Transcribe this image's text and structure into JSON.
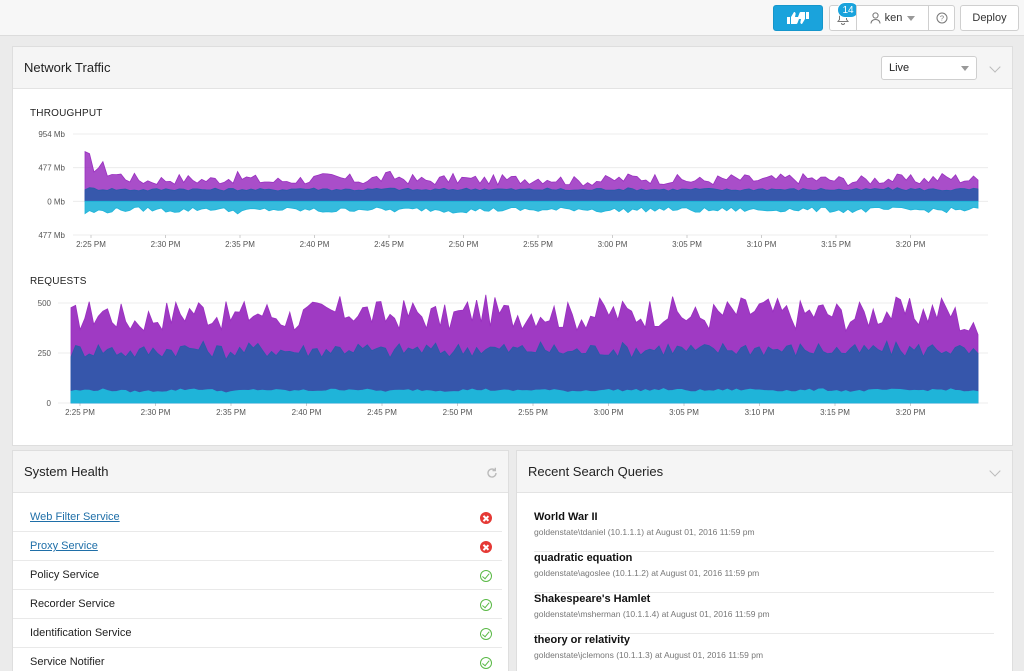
{
  "topbar": {
    "feedback_icon": "thumbs-up-down-icon",
    "notifications_count": "14",
    "user_name": "ken",
    "deploy_label": "Deploy"
  },
  "network": {
    "title": "Network Traffic",
    "range_value": "Live"
  },
  "health": {
    "title": "System Health",
    "services": [
      {
        "name": "Web Filter Service",
        "status": "error",
        "link": true
      },
      {
        "name": "Proxy Service",
        "status": "error",
        "link": true
      },
      {
        "name": "Policy Service",
        "status": "ok",
        "link": false
      },
      {
        "name": "Recorder Service",
        "status": "ok",
        "link": false
      },
      {
        "name": "Identification Service",
        "status": "ok",
        "link": false
      },
      {
        "name": "Service Notifier",
        "status": "ok",
        "link": false
      }
    ]
  },
  "search": {
    "title": "Recent Search Queries",
    "queries": [
      {
        "query": "World War II",
        "meta": "goldenstate\\tdaniel (10.1.1.1) at August 01, 2016 11:59 pm"
      },
      {
        "query": "quadratic equation",
        "meta": "goldenstate\\agoslee (10.1.1.2) at August 01, 2016 11:59 pm"
      },
      {
        "query": "Shakespeare's Hamlet",
        "meta": "goldenstate\\msherman (10.1.1.4) at August 01, 2016 11:59 pm"
      },
      {
        "query": "theory or relativity",
        "meta": "goldenstate\\jclemons (10.1.1.3) at August 01, 2016 11:59 pm"
      }
    ]
  },
  "colors": {
    "accent": "#1aa3dc",
    "purple": "#9a2fc0",
    "blue_dark": "#2a5aa8",
    "cyan": "#1fb4d9",
    "ok": "#5ab946",
    "error": "#e53935"
  },
  "chart_data": [
    {
      "type": "area",
      "title": "THROUGHPUT",
      "y_ticks": [
        "954 Mb",
        "477 Mb",
        "0 Mb",
        "477 Mb"
      ],
      "ylim": [
        -477,
        954
      ],
      "x_ticks": [
        "2:25 PM",
        "2:30 PM",
        "2:35 PM",
        "2:40 PM",
        "2:45 PM",
        "2:50 PM",
        "2:55 PM",
        "3:00 PM",
        "3:05 PM",
        "3:10 PM",
        "3:15 PM",
        "3:20 PM"
      ],
      "series": [
        {
          "role": "outbound",
          "color": "#9a2fc0",
          "values": [
            590,
            380,
            290,
            320,
            300,
            340,
            280,
            310,
            330,
            300,
            350,
            290,
            320,
            300,
            310,
            330,
            280,
            300,
            340,
            310,
            290,
            320,
            300,
            330,
            310,
            290,
            320,
            300,
            340,
            300
          ]
        },
        {
          "role": "mid",
          "color": "#2a5aa8",
          "values": [
            180,
            170,
            160,
            175,
            165,
            170,
            160,
            180,
            170,
            165,
            175,
            160,
            170,
            175,
            165,
            170,
            160,
            175,
            170,
            165,
            170,
            160,
            175,
            165,
            170,
            160,
            175,
            170,
            165,
            170
          ]
        },
        {
          "role": "inbound",
          "color": "#1fb4d9",
          "values": [
            -160,
            -120,
            -110,
            -130,
            -100,
            -140,
            -115,
            -120,
            -135,
            -105,
            -125,
            -110,
            -130,
            -120,
            -115,
            -125,
            -105,
            -130,
            -120,
            -110,
            -130,
            -115,
            -125,
            -110,
            -120,
            -130,
            -115,
            -120,
            -125,
            -110
          ]
        }
      ]
    },
    {
      "type": "area",
      "title": "REQUESTS",
      "y_ticks": [
        "500",
        "250",
        "0"
      ],
      "ylim": [
        0,
        500
      ],
      "x_ticks": [
        "2:25 PM",
        "2:30 PM",
        "2:35 PM",
        "2:40 PM",
        "2:45 PM",
        "2:50 PM",
        "2:55 PM",
        "3:00 PM",
        "3:05 PM",
        "3:10 PM",
        "3:15 PM",
        "3:20 PM"
      ],
      "series": [
        {
          "role": "top",
          "color": "#9a2fc0",
          "values": [
            420,
            460,
            410,
            440,
            470,
            430,
            455,
            425,
            445,
            465,
            435,
            450,
            420,
            470,
            440,
            460,
            430,
            455,
            445,
            465,
            425,
            450,
            470,
            440,
            455,
            430,
            460,
            445,
            470,
            340
          ]
        },
        {
          "role": "mid",
          "color": "#2a5aa8",
          "values": [
            260,
            270,
            250,
            265,
            275,
            255,
            270,
            260,
            265,
            275,
            255,
            270,
            260,
            275,
            265,
            270,
            255,
            270,
            265,
            275,
            260,
            270,
            275,
            265,
            270,
            255,
            270,
            265,
            275,
            240
          ]
        },
        {
          "role": "base",
          "color": "#1fb4d9",
          "values": [
            60,
            65,
            55,
            60,
            70,
            55,
            65,
            60,
            62,
            68,
            58,
            64,
            60,
            66,
            60,
            65,
            58,
            64,
            62,
            66,
            60,
            64,
            66,
            60,
            65,
            58,
            64,
            62,
            66,
            55
          ]
        }
      ]
    }
  ]
}
